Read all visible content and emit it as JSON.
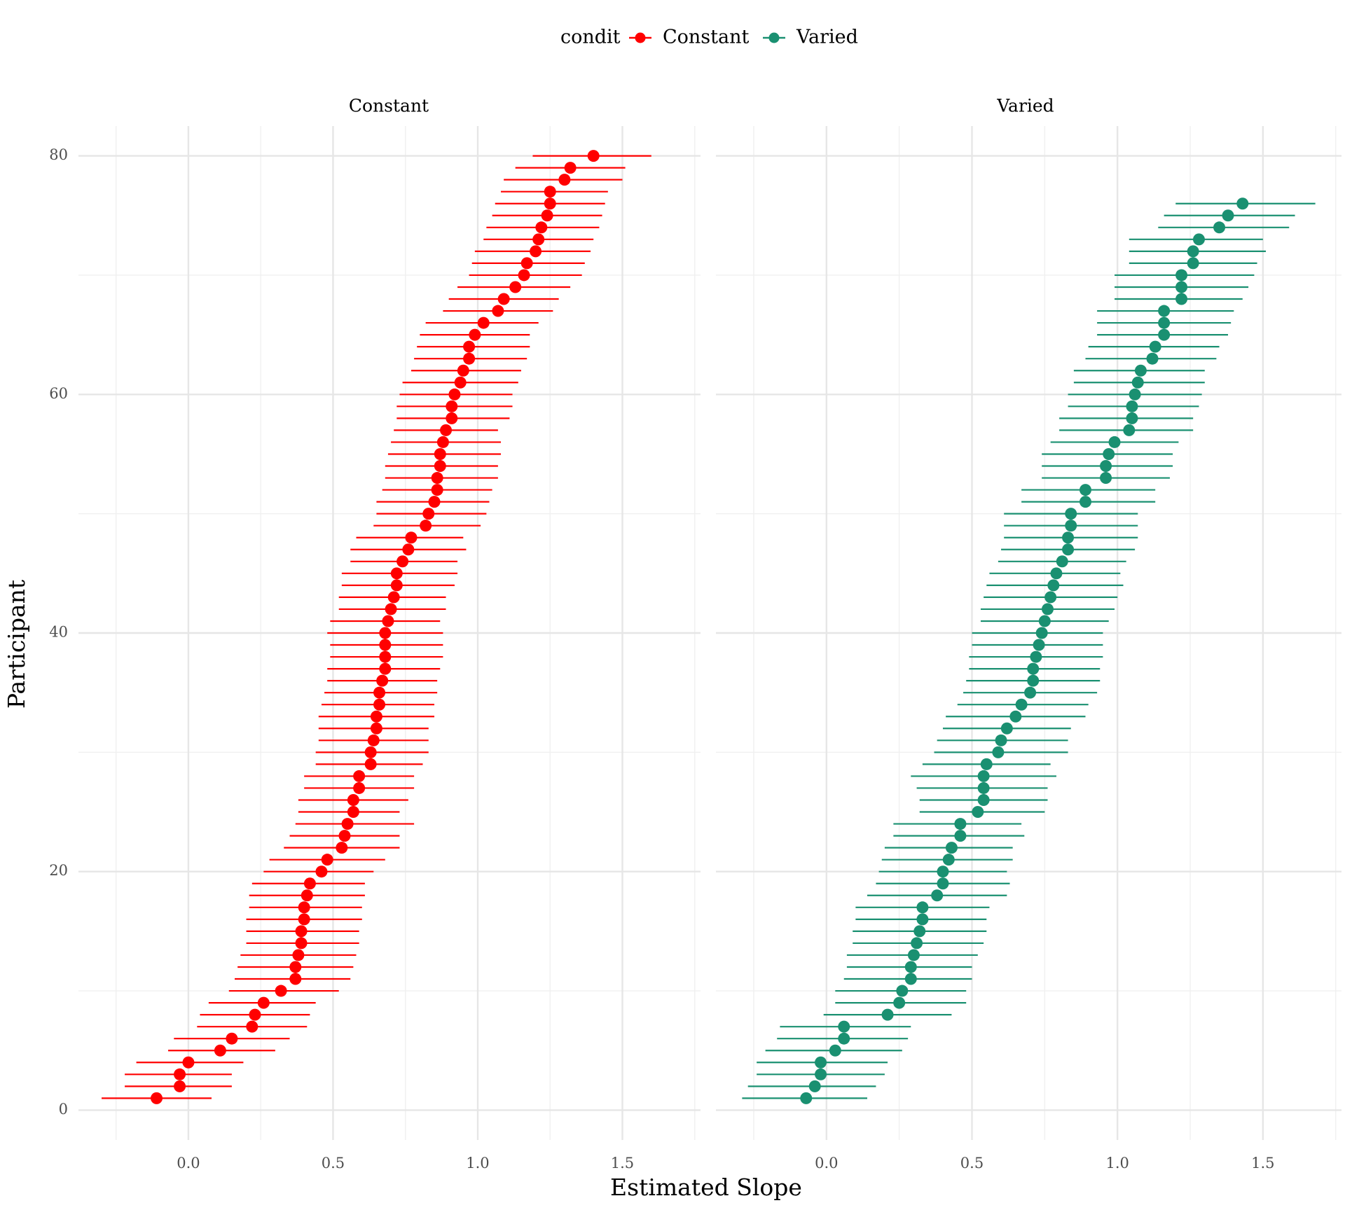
{
  "legend": {
    "title": "condit"
  },
  "xlabel": "Estimated Slope",
  "ylabel": "Participant",
  "colors": {
    "Constant": "#ff0000",
    "Varied": "#1a9071"
  },
  "chart_data": [
    {
      "type": "scatter",
      "panel": "Constant",
      "xlabel": "Estimated Slope",
      "ylabel": "Participant",
      "xlim": [
        -0.38,
        1.77
      ],
      "ylim": [
        -2.5,
        82.5
      ],
      "xticks": [
        0.0,
        0.5,
        1.0,
        1.5
      ],
      "yticks": [
        0,
        20,
        40,
        60,
        80
      ],
      "grid": true,
      "legend": "top-center",
      "series": [
        {
          "name": "Constant",
          "x": [
            1,
            2,
            3,
            4,
            5,
            6,
            7,
            8,
            9,
            10,
            11,
            12,
            13,
            14,
            15,
            16,
            17,
            18,
            19,
            20,
            21,
            22,
            23,
            24,
            25,
            26,
            27,
            28,
            29,
            30,
            31,
            32,
            33,
            34,
            35,
            36,
            37,
            38,
            39,
            40,
            41,
            42,
            43,
            44,
            45,
            46,
            47,
            48,
            49,
            50,
            51,
            52,
            53,
            54,
            55,
            56,
            57,
            58,
            59,
            60,
            61,
            62,
            63,
            64,
            65,
            66,
            67,
            68,
            69,
            70,
            71,
            72,
            73,
            74,
            75,
            76,
            77,
            78,
            79,
            80
          ],
          "estimate": [
            -0.11,
            -0.03,
            -0.03,
            0.0,
            0.11,
            0.15,
            0.22,
            0.23,
            0.26,
            0.32,
            0.37,
            0.37,
            0.38,
            0.39,
            0.39,
            0.4,
            0.4,
            0.41,
            0.42,
            0.46,
            0.48,
            0.53,
            0.54,
            0.55,
            0.57,
            0.57,
            0.59,
            0.59,
            0.63,
            0.63,
            0.64,
            0.65,
            0.65,
            0.66,
            0.66,
            0.67,
            0.68,
            0.68,
            0.68,
            0.68,
            0.69,
            0.7,
            0.71,
            0.72,
            0.72,
            0.74,
            0.76,
            0.77,
            0.82,
            0.83,
            0.85,
            0.86,
            0.86,
            0.87,
            0.87,
            0.88,
            0.89,
            0.91,
            0.91,
            0.92,
            0.94,
            0.95,
            0.97,
            0.97,
            0.99,
            1.02,
            1.07,
            1.09,
            1.13,
            1.16,
            1.17,
            1.2,
            1.21,
            1.22,
            1.24,
            1.25,
            1.25,
            1.3,
            1.32,
            1.4
          ],
          "lower": [
            -0.3,
            -0.22,
            -0.22,
            -0.18,
            -0.07,
            -0.05,
            0.03,
            0.04,
            0.07,
            0.14,
            0.16,
            0.17,
            0.18,
            0.2,
            0.2,
            0.2,
            0.21,
            0.21,
            0.22,
            0.26,
            0.28,
            0.33,
            0.35,
            0.37,
            0.38,
            0.38,
            0.4,
            0.4,
            0.44,
            0.44,
            0.45,
            0.45,
            0.45,
            0.46,
            0.47,
            0.48,
            0.48,
            0.49,
            0.49,
            0.48,
            0.49,
            0.52,
            0.52,
            0.53,
            0.53,
            0.56,
            0.56,
            0.58,
            0.64,
            0.65,
            0.65,
            0.67,
            0.68,
            0.68,
            0.69,
            0.7,
            0.71,
            0.72,
            0.72,
            0.73,
            0.74,
            0.77,
            0.78,
            0.79,
            0.8,
            0.82,
            0.88,
            0.9,
            0.93,
            0.97,
            0.98,
            0.99,
            1.02,
            1.03,
            1.05,
            1.06,
            1.08,
            1.09,
            1.13,
            1.19
          ],
          "upper": [
            0.08,
            0.15,
            0.15,
            0.19,
            0.3,
            0.35,
            0.41,
            0.42,
            0.44,
            0.52,
            0.56,
            0.57,
            0.58,
            0.59,
            0.59,
            0.6,
            0.6,
            0.61,
            0.61,
            0.64,
            0.68,
            0.73,
            0.73,
            0.78,
            0.73,
            0.76,
            0.78,
            0.78,
            0.81,
            0.83,
            0.83,
            0.83,
            0.85,
            0.85,
            0.86,
            0.86,
            0.87,
            0.88,
            0.88,
            0.88,
            0.87,
            0.89,
            0.89,
            0.92,
            0.93,
            0.93,
            0.96,
            0.95,
            1.01,
            1.03,
            1.04,
            1.05,
            1.07,
            1.07,
            1.08,
            1.08,
            1.07,
            1.11,
            1.12,
            1.12,
            1.14,
            1.15,
            1.17,
            1.18,
            1.18,
            1.21,
            1.26,
            1.28,
            1.32,
            1.36,
            1.37,
            1.39,
            1.4,
            1.42,
            1.43,
            1.44,
            1.45,
            1.5,
            1.51,
            1.6
          ]
        }
      ]
    },
    {
      "type": "scatter",
      "panel": "Varied",
      "xlabel": "Estimated Slope",
      "ylabel": "Participant",
      "xlim": [
        -0.38,
        1.77
      ],
      "ylim": [
        -2.5,
        82.5
      ],
      "xticks": [
        0.0,
        0.5,
        1.0,
        1.5
      ],
      "yticks": [
        0,
        20,
        40,
        60,
        80
      ],
      "grid": true,
      "legend": "top-center",
      "series": [
        {
          "name": "Varied",
          "x": [
            1,
            2,
            3,
            4,
            5,
            6,
            7,
            8,
            9,
            10,
            11,
            12,
            13,
            14,
            15,
            16,
            17,
            18,
            19,
            20,
            21,
            22,
            23,
            24,
            25,
            26,
            27,
            28,
            29,
            30,
            31,
            32,
            33,
            34,
            35,
            36,
            37,
            38,
            39,
            40,
            41,
            42,
            43,
            44,
            45,
            46,
            47,
            48,
            49,
            50,
            51,
            52,
            53,
            54,
            55,
            56,
            57,
            58,
            59,
            60,
            61,
            62,
            63,
            64,
            65,
            66,
            67,
            68,
            69,
            70,
            71,
            72,
            73,
            74,
            75,
            76
          ],
          "estimate": [
            -0.07,
            -0.04,
            -0.02,
            -0.02,
            0.03,
            0.06,
            0.06,
            0.21,
            0.25,
            0.26,
            0.29,
            0.29,
            0.3,
            0.31,
            0.32,
            0.33,
            0.33,
            0.38,
            0.4,
            0.4,
            0.42,
            0.43,
            0.46,
            0.46,
            0.52,
            0.54,
            0.54,
            0.54,
            0.55,
            0.59,
            0.6,
            0.62,
            0.65,
            0.67,
            0.7,
            0.71,
            0.71,
            0.72,
            0.73,
            0.74,
            0.75,
            0.76,
            0.77,
            0.78,
            0.79,
            0.81,
            0.83,
            0.83,
            0.84,
            0.84,
            0.89,
            0.89,
            0.96,
            0.96,
            0.97,
            0.99,
            1.04,
            1.05,
            1.05,
            1.06,
            1.07,
            1.08,
            1.12,
            1.13,
            1.16,
            1.16,
            1.16,
            1.22,
            1.22,
            1.22,
            1.26,
            1.26,
            1.28,
            1.35,
            1.38,
            1.43
          ],
          "lower": [
            -0.29,
            -0.27,
            -0.24,
            -0.24,
            -0.21,
            -0.17,
            -0.16,
            -0.01,
            0.03,
            0.03,
            0.06,
            0.07,
            0.07,
            0.09,
            0.09,
            0.1,
            0.1,
            0.14,
            0.17,
            0.18,
            0.19,
            0.2,
            0.23,
            0.23,
            0.32,
            0.32,
            0.31,
            0.29,
            0.33,
            0.37,
            0.38,
            0.4,
            0.41,
            0.45,
            0.47,
            0.48,
            0.49,
            0.49,
            0.5,
            0.5,
            0.53,
            0.53,
            0.54,
            0.55,
            0.56,
            0.59,
            0.6,
            0.61,
            0.61,
            0.61,
            0.67,
            0.67,
            0.74,
            0.74,
            0.74,
            0.77,
            0.8,
            0.8,
            0.83,
            0.83,
            0.85,
            0.85,
            0.89,
            0.9,
            0.93,
            0.93,
            0.93,
            0.99,
            0.99,
            0.99,
            1.04,
            1.04,
            1.04,
            1.14,
            1.16,
            1.2
          ],
          "upper": [
            0.14,
            0.17,
            0.2,
            0.21,
            0.26,
            0.28,
            0.29,
            0.43,
            0.48,
            0.48,
            0.5,
            0.5,
            0.52,
            0.54,
            0.55,
            0.55,
            0.56,
            0.62,
            0.63,
            0.62,
            0.64,
            0.64,
            0.68,
            0.67,
            0.75,
            0.76,
            0.76,
            0.79,
            0.77,
            0.83,
            0.83,
            0.84,
            0.89,
            0.9,
            0.93,
            0.94,
            0.94,
            0.95,
            0.95,
            0.95,
            0.97,
            0.99,
            1.0,
            1.02,
            1.01,
            1.03,
            1.06,
            1.07,
            1.07,
            1.07,
            1.13,
            1.13,
            1.18,
            1.19,
            1.19,
            1.21,
            1.26,
            1.26,
            1.28,
            1.29,
            1.3,
            1.3,
            1.34,
            1.35,
            1.38,
            1.39,
            1.4,
            1.43,
            1.45,
            1.47,
            1.48,
            1.51,
            1.5,
            1.59,
            1.61,
            1.68
          ]
        }
      ]
    }
  ]
}
